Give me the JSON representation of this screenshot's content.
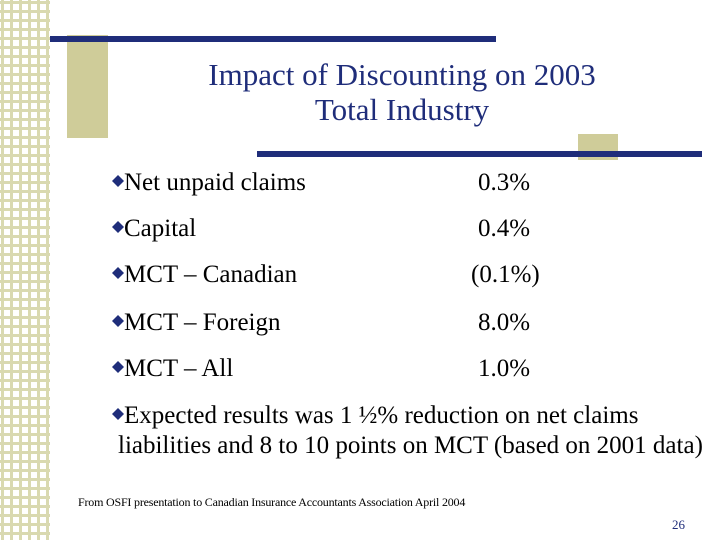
{
  "slide": {
    "title_line1": "Impact of Discounting on 2003",
    "title_line2": "Total Industry",
    "rows": [
      {
        "label": "Net unpaid claims",
        "value": "0.3%"
      },
      {
        "label": "Capital",
        "value": "0.4%"
      },
      {
        "label": "MCT – Canadian",
        "value": "(0.1%)"
      },
      {
        "label": "MCT – Foreign",
        "value": "8.0%"
      },
      {
        "label": "MCT – All",
        "value": "1.0%"
      }
    ],
    "note": "Expected results was 1 ½% reduction on net claims liabilities and 8 to 10 points on MCT (based on 2001 data)",
    "source": "From OSFI presentation to Canadian Insurance Accountants Association April 2004",
    "page_number": "26"
  },
  "colors": {
    "accent_navy": "#1f2d7a",
    "olive": "#cfcc99"
  }
}
